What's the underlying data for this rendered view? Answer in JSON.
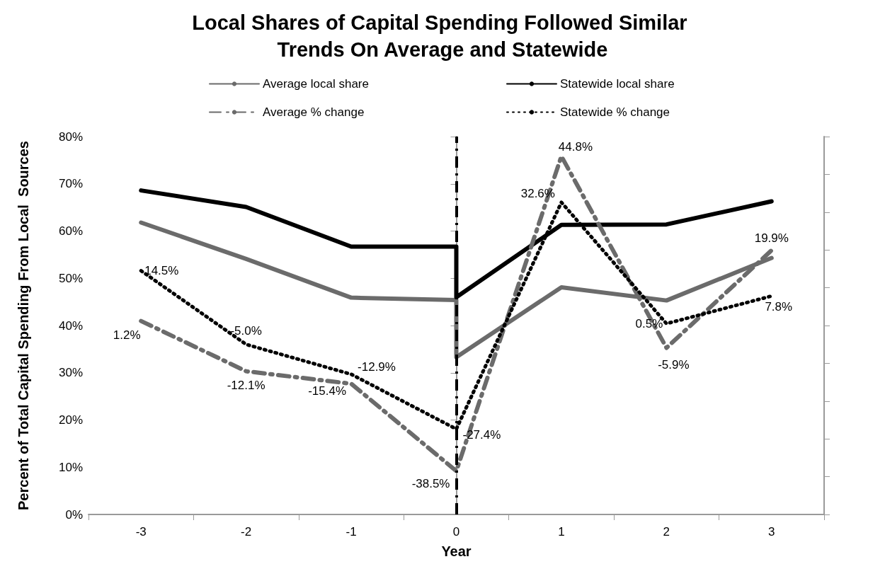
{
  "chart_data": {
    "type": "line",
    "title": "Local Shares of Capital Spending Followed Similar Trends On Average and Statewide",
    "xlabel": "Year",
    "ylabel": "Percent of Total Capital Spending From Local  Sources",
    "xlim": [
      -3.5,
      3.5
    ],
    "xticks": [
      {
        "value": -3.5,
        "label": null
      },
      -3,
      {
        "value": -2.5,
        "label": null
      },
      -2,
      {
        "value": -1.5,
        "label": null
      },
      -1,
      {
        "value": -0.5,
        "label": null
      },
      0,
      {
        "value": 0.5,
        "label": null
      },
      1,
      {
        "value": 1.5,
        "label": null
      },
      2,
      {
        "value": 2.5,
        "label": null
      },
      3,
      {
        "value": 3.5,
        "label": null
      }
    ],
    "ylim": [
      0,
      80
    ],
    "yticks": [
      {
        "value": 0,
        "label": "0%"
      },
      {
        "value": 10,
        "label": "10%"
      },
      {
        "value": 20,
        "label": "20%"
      },
      {
        "value": 30,
        "label": "30%"
      },
      {
        "value": 40,
        "label": "40%"
      },
      {
        "value": 50,
        "label": "50%"
      },
      {
        "value": 60,
        "label": "60%"
      },
      {
        "value": 70,
        "label": "70%"
      },
      {
        "value": 80,
        "label": "80%"
      }
    ],
    "y2lim": [
      -50,
      50
    ],
    "y2ticks": [
      {
        "value": -50,
        "label": null
      },
      {
        "value": -40,
        "label": null
      },
      {
        "value": -30,
        "label": null
      },
      {
        "value": -20,
        "label": null
      },
      {
        "value": -10,
        "label": null
      },
      {
        "value": 0,
        "label": null
      },
      {
        "value": 10,
        "label": null
      },
      {
        "value": 20,
        "label": null
      },
      {
        "value": 30,
        "label": null
      },
      {
        "value": 40,
        "label": null
      },
      {
        "value": 50,
        "label": null
      }
    ],
    "grid": false,
    "legend": "top",
    "marker": "none",
    "ref_lines": [
      {
        "axis": "x",
        "value": 0,
        "color": "#000000",
        "line_style": "dashed"
      }
    ],
    "series": [
      {
        "name": "Average local share",
        "color": "#6b6b6b",
        "line_style": "solid",
        "x": [
          -3,
          -2,
          -1,
          0,
          0,
          1,
          2,
          3
        ],
        "values": [
          61.8,
          54.1,
          45.9,
          45.4,
          33.3,
          48.1,
          45.3,
          54.3
        ]
      },
      {
        "name": "Statewide local share",
        "color": "#000000",
        "line_style": "solid",
        "x": [
          -3,
          -2,
          -1,
          0,
          0,
          1,
          2,
          3
        ],
        "values": [
          68.6,
          65.1,
          56.7,
          56.7,
          46.0,
          61.3,
          61.4,
          66.3
        ]
      },
      {
        "name": "Average % change",
        "color": "#6b6b6b",
        "line_style": "dashed",
        "axis": "y2",
        "x": [
          -3,
          -2,
          -1,
          0,
          1,
          2,
          3
        ],
        "values": [
          1.2,
          -12.1,
          -15.4,
          -38.5,
          44.8,
          -5.9,
          19.9
        ],
        "value_labels": [
          "1.2%",
          "-12.1%",
          "-15.4%",
          "-38.5%",
          "44.8%",
          "-5.9%",
          "19.9%"
        ]
      },
      {
        "name": "Statewide % change",
        "color": "#000000",
        "line_style": "dotted",
        "axis": "y2",
        "x": [
          -3,
          -2,
          -1,
          0,
          1,
          2,
          3
        ],
        "values": [
          14.5,
          -5.0,
          -12.9,
          -27.4,
          32.6,
          0.5,
          7.8
        ],
        "value_labels": [
          "14.5%",
          "-5.0%",
          "-12.9%",
          "-27.4%",
          "32.6%",
          "0.5%",
          "7.8%"
        ]
      }
    ]
  }
}
